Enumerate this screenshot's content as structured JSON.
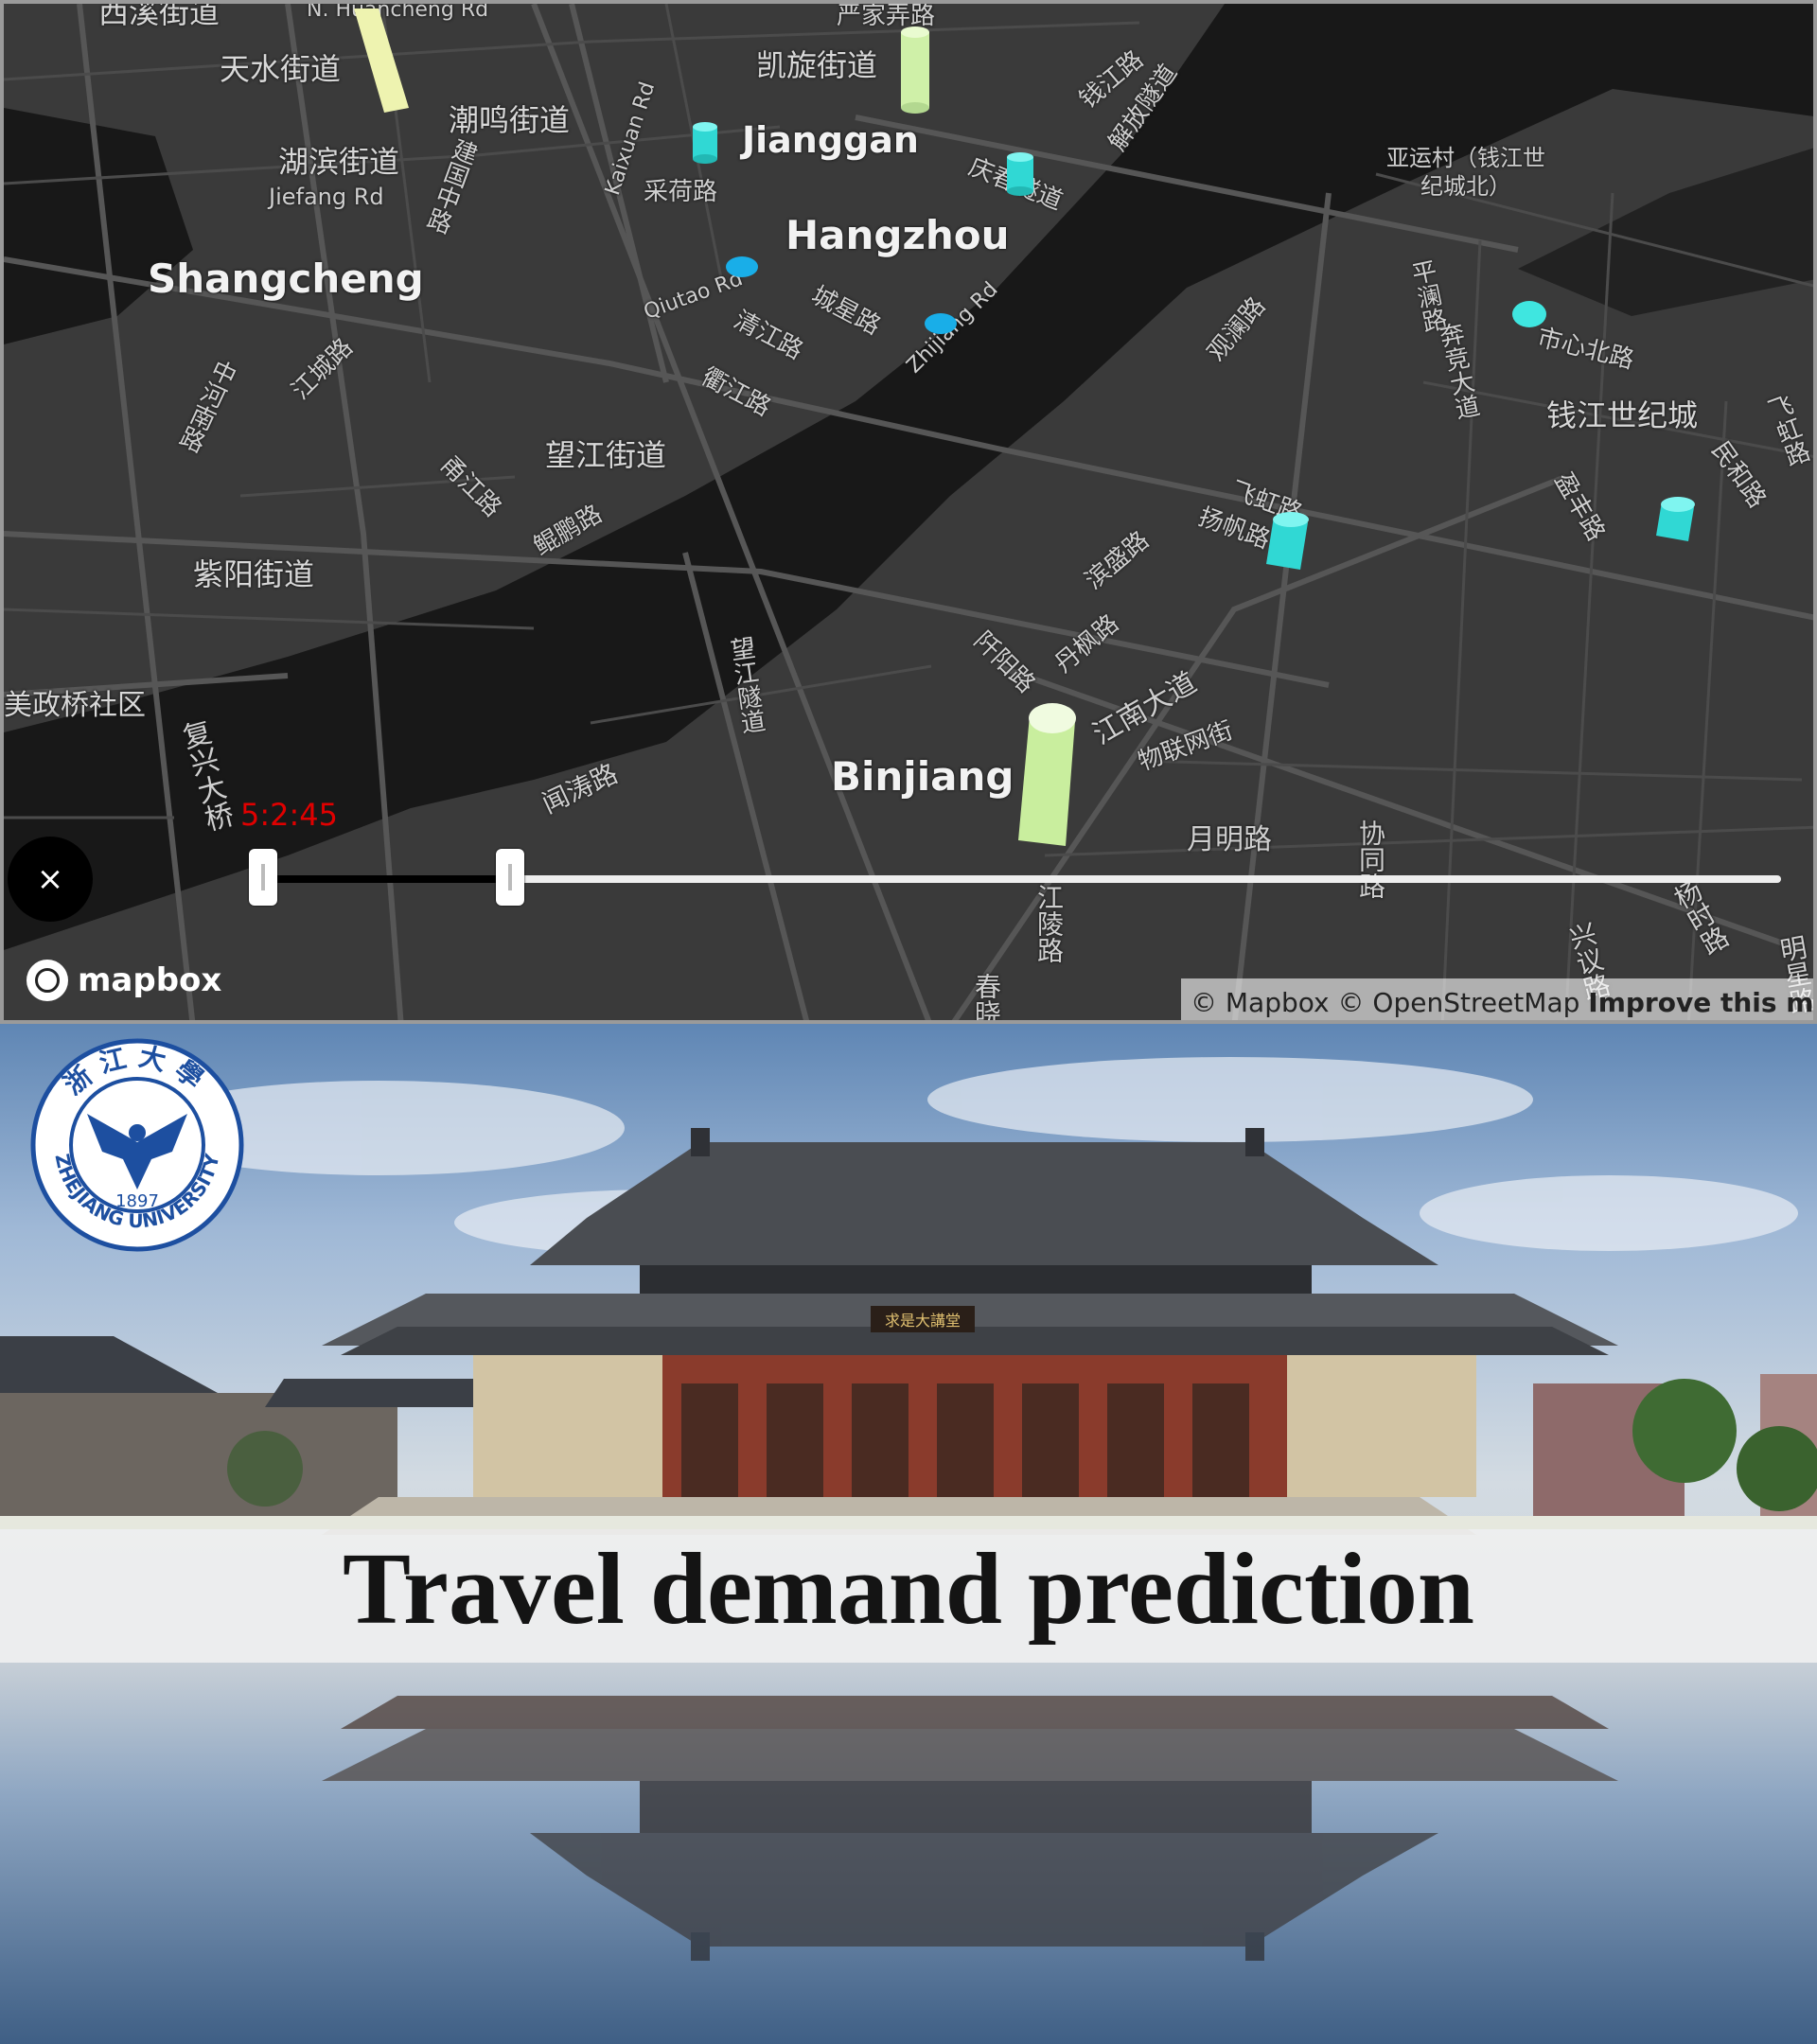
{
  "map": {
    "labels": {
      "top_left_partial": "西溪街道",
      "n_huancheng": "N. Huancheng Rd",
      "tianshui": "天水街道",
      "chaoming": "潮鸣街道",
      "hubin": "湖滨街道",
      "jiefang": "Jiefang Rd",
      "jianguo": "建国中路",
      "kaixuan_rd": "Kaixuan Rd",
      "yanjia": "严家弄路",
      "kaixuan_jd": "凯旋街道",
      "jianggan": "Jianggan",
      "caihe": "采荷路",
      "qingchun_tunnel": "庆春隧道",
      "qiantang": "钱江路",
      "zhijiang_tunnel": "解放隧道",
      "yayun": "亚运村（钱江世纪城北）",
      "hangzhou": "Hangzhou",
      "shangcheng": "Shangcheng",
      "qiutao": "Qiutao Rd",
      "qingjiang": "清江路",
      "chengxing": "城星路",
      "zhijiang_rd": "Zhijiang Rd",
      "guanlan": "观澜路",
      "pingshan": "平澜路",
      "benjing": "奔竞大道",
      "shixinbei": "市心北路",
      "qianjiang_sjc": "钱江世纪城",
      "feihong_right": "飞虹路",
      "minhe": "民和路",
      "quzhou": "衢江路",
      "jiangcheng": "江城路",
      "fuxing_zhong": "中河南路",
      "wangjiang": "望江街道",
      "yongjiang": "甬江路",
      "kunpeng": "鲲鹏路",
      "feihong": "飞虹路",
      "yangfan": "扬帆路",
      "yingfeng": "盈丰路",
      "ziyang": "紫阳街道",
      "binsheng": "滨盛路",
      "danfeng": "丹枫路",
      "qianyang": "阡阳路",
      "jiangnan": "江南大道",
      "wangjiang_tunnel": "望江隧道",
      "meizheng": "美政桥社区",
      "fuxing_bridge": "复兴大桥",
      "wentao": "闻涛路",
      "binjiang": "Binjiang",
      "wulian": "物联网街",
      "yueming": "月明路",
      "xietong": "协同路",
      "jiangling": "江陵路",
      "xingyi": "兴议路",
      "yangshi": "杨时路",
      "chunxiao": "春晓路",
      "mingxing": "明星路"
    },
    "timer": "5:2:45",
    "close_label": "×",
    "slider": {
      "start_fraction": 0.08,
      "end_fraction": 0.23
    },
    "logo_text": "mapbox",
    "attribution": {
      "mapbox": "© Mapbox",
      "osm": "© OpenStreetMap",
      "improve": "Improve this map"
    }
  },
  "banner": {
    "title": "Travel demand prediction",
    "logo_year": "1897",
    "logo_text": "ZHEJIANG UNIVERSITY",
    "logo_chinese": "浙江大學",
    "plaque": "求是大講堂"
  },
  "colors": {
    "map_bg": "#3a3a3a",
    "river": "#181818",
    "cyl_cyan": "#3fe6e0",
    "cyl_blue": "#19aee8",
    "cyl_green": "#d8f5b8",
    "timer_red": "#e00000"
  }
}
